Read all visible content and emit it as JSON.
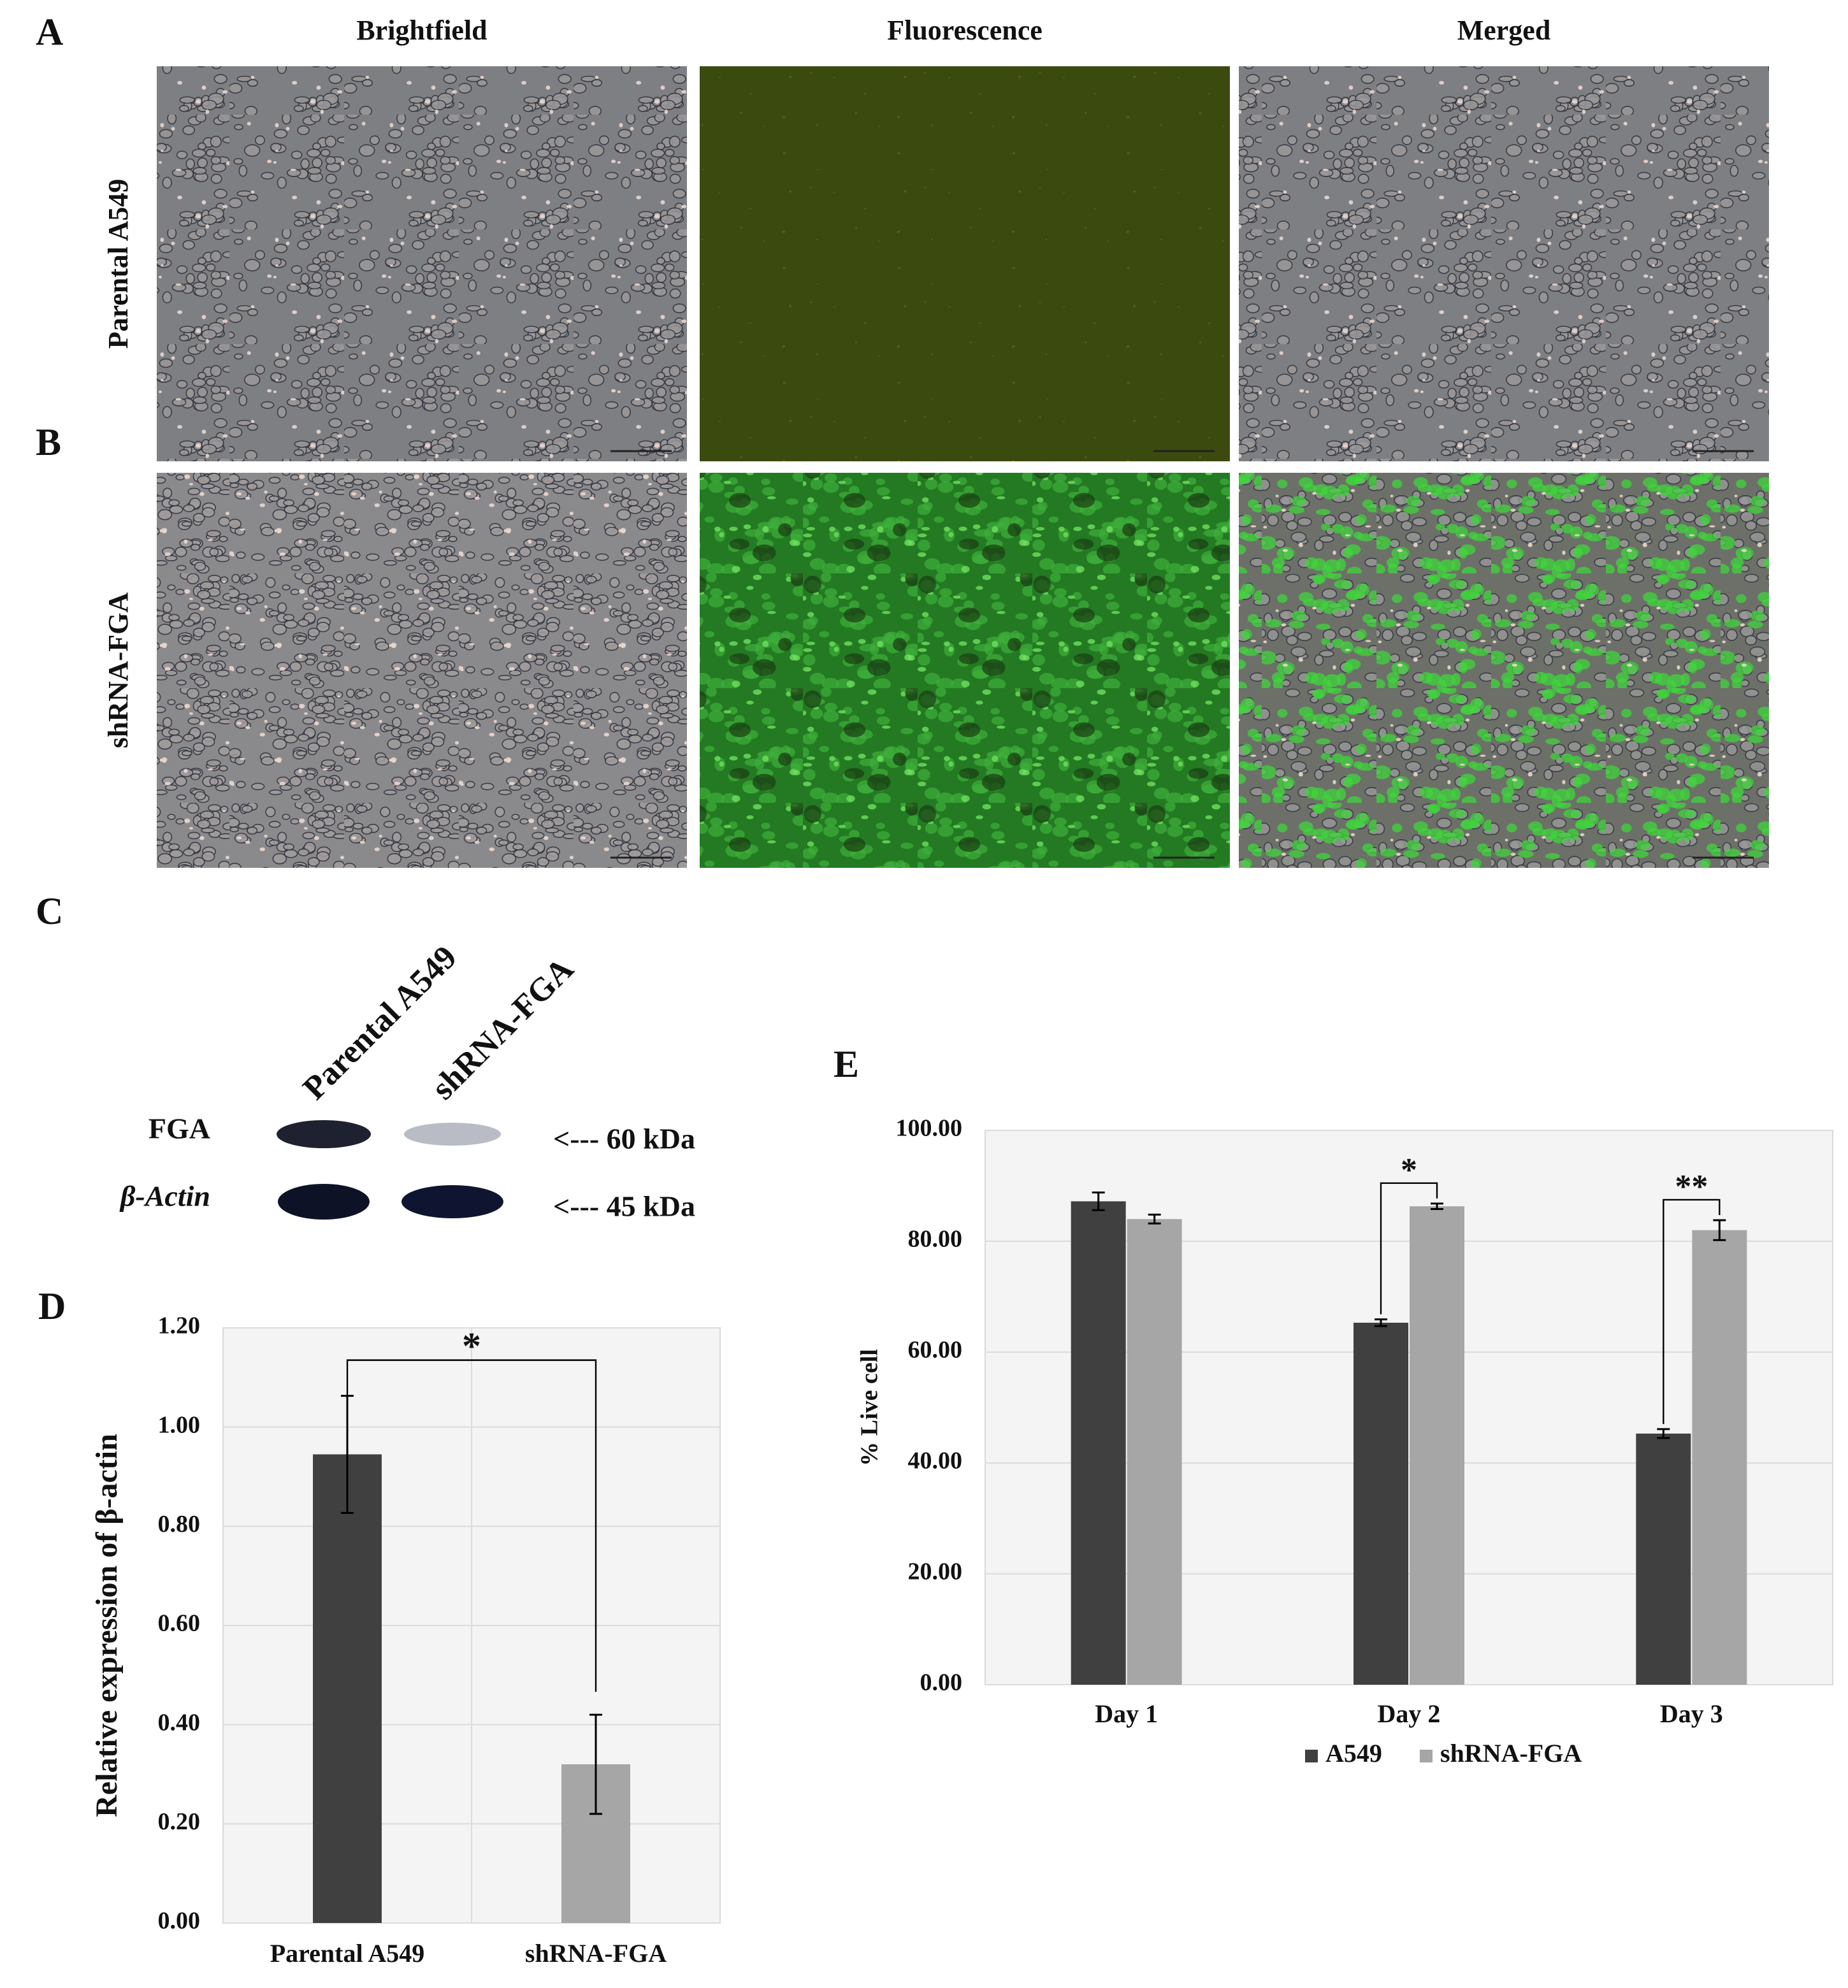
{
  "panel_labels": [
    "A",
    "B",
    "C",
    "D",
    "E"
  ],
  "microscopy": {
    "columns": [
      "Brightfield",
      "Fluorescence",
      "Merged"
    ],
    "rows": [
      "Parental A549",
      "shRNA-FGA"
    ]
  },
  "western_blot": {
    "lanes": [
      "Parental A549",
      "shRNA-FGA"
    ],
    "proteins": [
      "FGA",
      "β-Actin"
    ],
    "markers": [
      "<--- 60 kDa",
      "<--- 45 kDa"
    ]
  },
  "chart_data": [
    {
      "type": "bar",
      "y_label": "Relative expression of β-actin",
      "categories": [
        "Parental A549",
        "shRNA-FGA"
      ],
      "values": [
        0.945,
        0.32
      ],
      "errors": [
        0.118,
        0.1
      ],
      "colors": [
        "#404040",
        "#a6a6a6"
      ],
      "ylim": [
        0,
        1.2
      ],
      "yticks": [
        {
          "value": 0,
          "label": "0.00"
        },
        {
          "value": 0.2,
          "label": "0.20"
        },
        {
          "value": 0.4,
          "label": "0.40"
        },
        {
          "value": 0.6,
          "label": "0.60"
        },
        {
          "value": 0.8,
          "label": "0.80"
        },
        {
          "value": 1.0,
          "label": "1.00"
        },
        {
          "value": 1.2,
          "label": "1.20"
        }
      ],
      "grid": true,
      "annotations": [
        "*"
      ]
    },
    {
      "type": "grouped-bar",
      "y_label": "% Live cell",
      "categories": [
        "Day 1",
        "Day 2",
        "Day 3"
      ],
      "series": [
        {
          "name": "A549",
          "color": "#404040",
          "values": [
            87.2,
            65.3,
            45.3
          ],
          "errors": [
            1.6,
            0.6,
            0.8
          ]
        },
        {
          "name": "shRNA-FGA",
          "color": "#a6a6a6",
          "values": [
            84.0,
            86.3,
            82.0
          ],
          "errors": [
            0.8,
            0.5,
            1.8
          ]
        }
      ],
      "ylim": [
        0,
        100
      ],
      "yticks": [
        {
          "value": 0,
          "label": "0.00"
        },
        {
          "value": 20,
          "label": "20.00"
        },
        {
          "value": 40,
          "label": "40.00"
        },
        {
          "value": 60,
          "label": "60.00"
        },
        {
          "value": 80,
          "label": "80.00"
        },
        {
          "value": 100,
          "label": "100.00"
        }
      ],
      "grid": true,
      "legend": "bottom",
      "annotations": [
        "*",
        "**"
      ]
    }
  ]
}
